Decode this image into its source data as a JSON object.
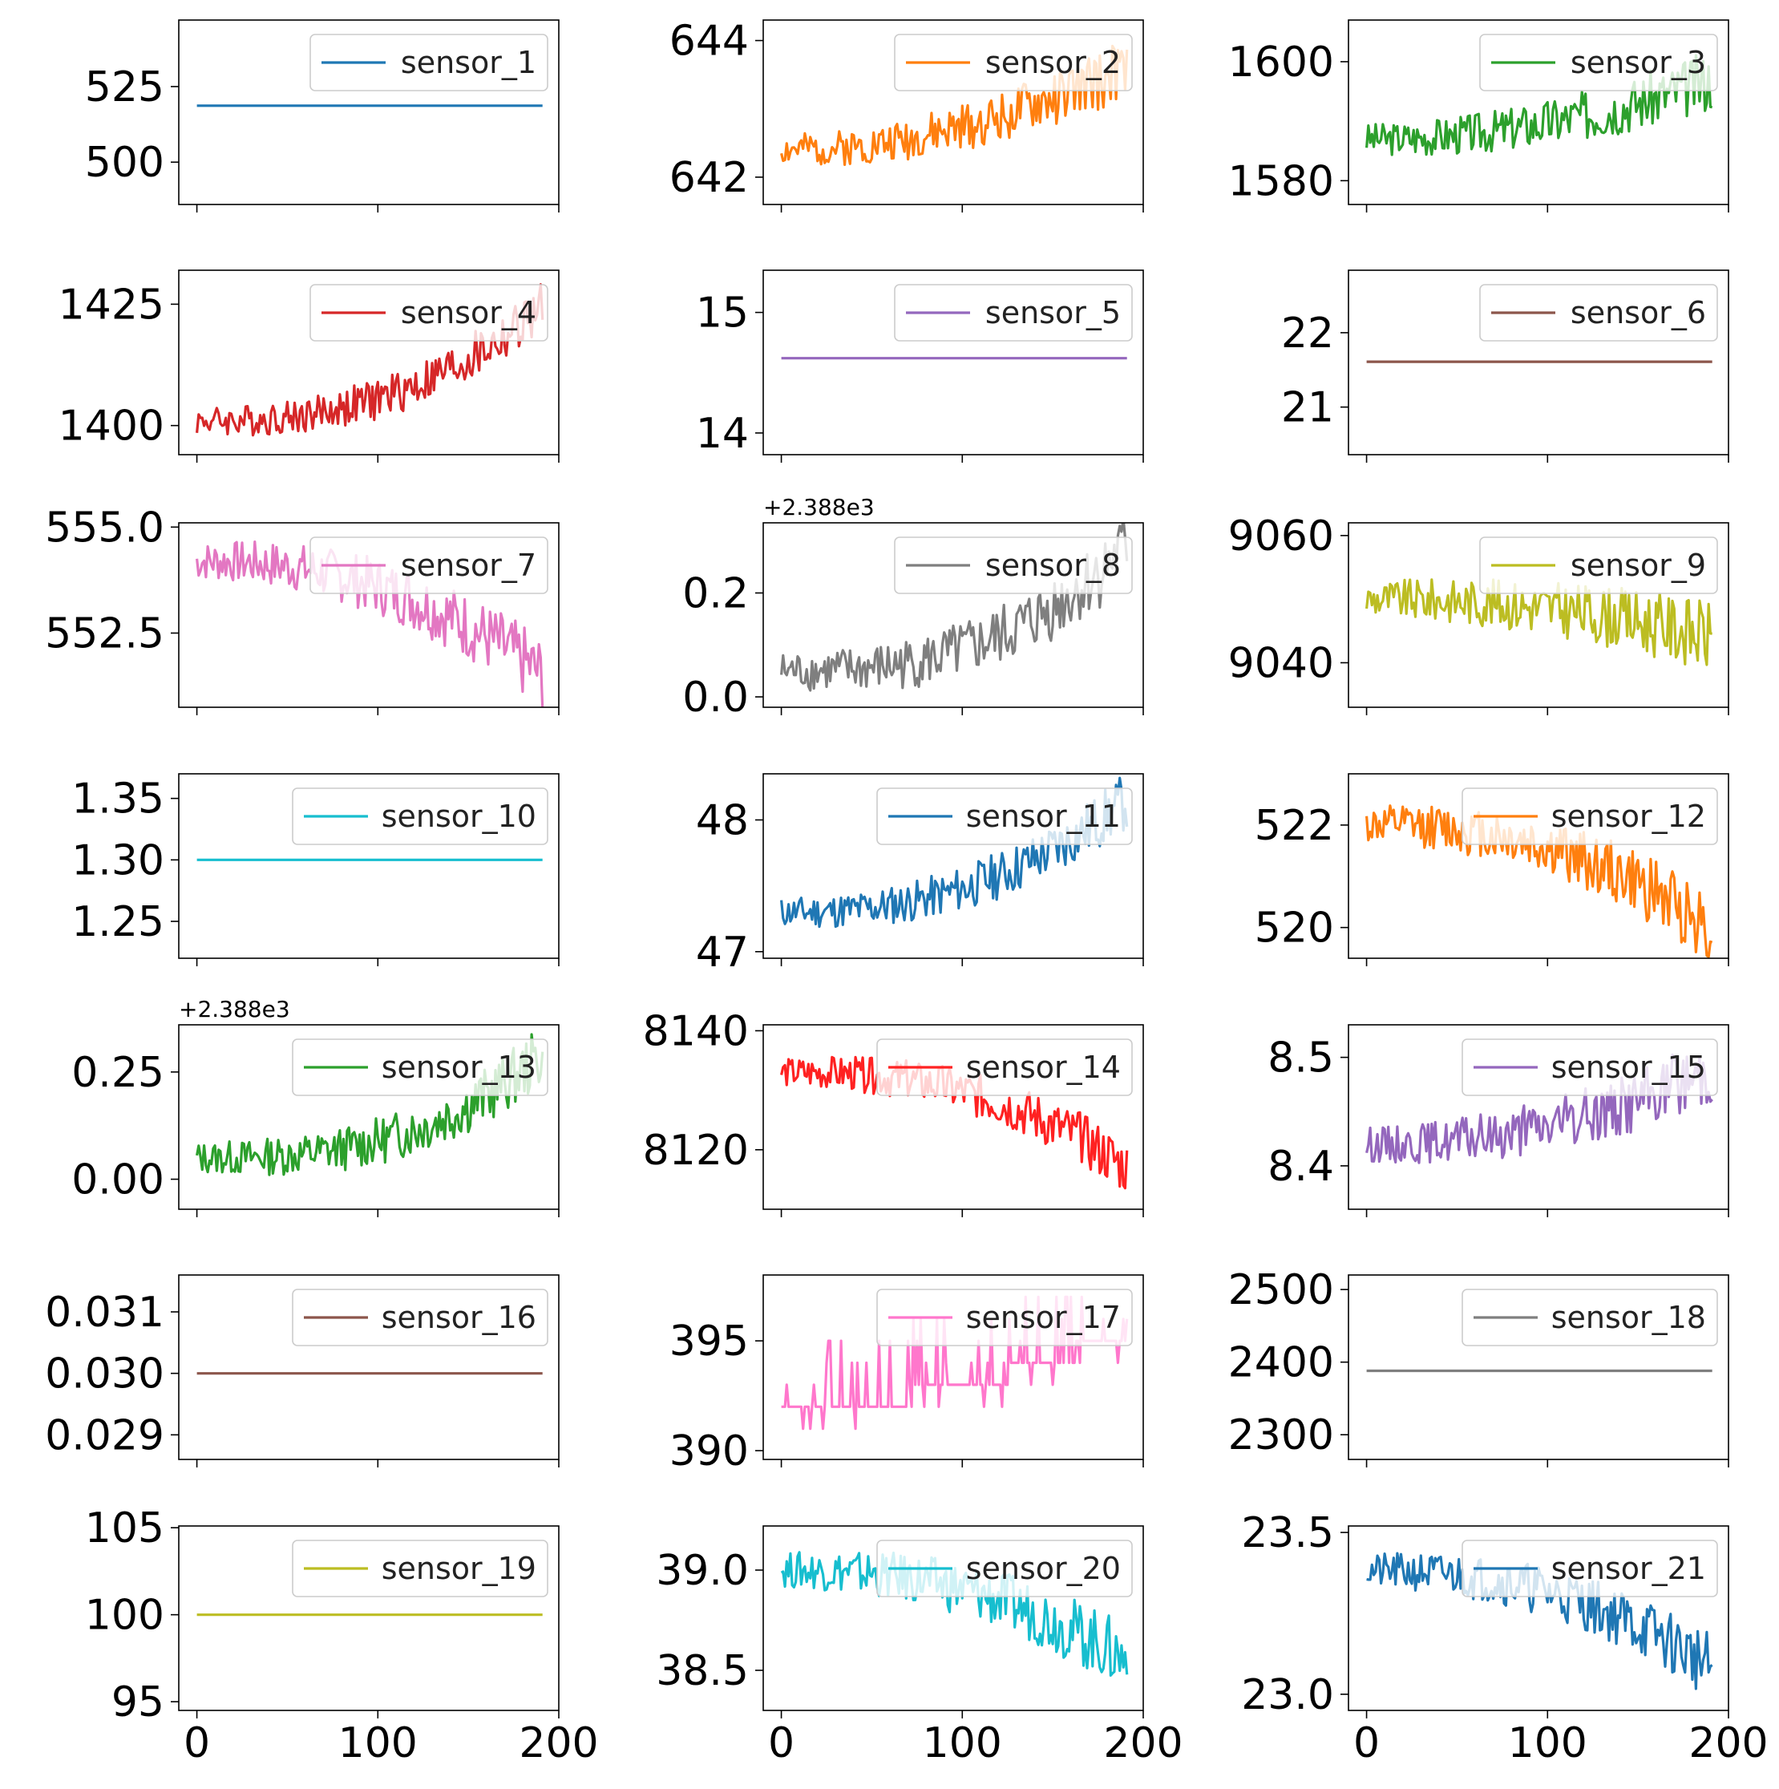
{
  "figure": {
    "title": ""
  },
  "chart_data": [
    {
      "type": "line",
      "name": "sensor_1",
      "legend": "sensor_1",
      "color": "#1f77b4",
      "x_range": [
        0,
        191
      ],
      "xlim": [
        -10,
        200
      ],
      "ylim": [
        486,
        547
      ],
      "yticks": [
        500,
        525
      ],
      "ytick_labels": [
        "500",
        "525"
      ],
      "offset_label": "",
      "mode": "flat",
      "y_value": 518.67
    },
    {
      "type": "line",
      "name": "sensor_2",
      "legend": "sensor_2",
      "color": "#ff7f0e",
      "x_range": [
        0,
        191
      ],
      "xlim": [
        -10,
        200
      ],
      "ylim": [
        641.6,
        644.3
      ],
      "yticks": [
        642,
        644
      ],
      "ytick_labels": [
        "642",
        "644"
      ],
      "offset_label": "",
      "mode": "noisy",
      "start": 642.4,
      "end": 643.6,
      "noise": 0.55,
      "curve": 2.0,
      "seed": 2
    },
    {
      "type": "line",
      "name": "sensor_3",
      "legend": "sensor_3",
      "color": "#2ca02c",
      "x_range": [
        0,
        191
      ],
      "xlim": [
        -10,
        200
      ],
      "ylim": [
        1576,
        1607
      ],
      "yticks": [
        1580,
        1600
      ],
      "ytick_labels": [
        "1580",
        "1600"
      ],
      "offset_label": "",
      "mode": "noisy",
      "start": 1587,
      "end": 1597,
      "noise": 6.5,
      "curve": 2.0,
      "seed": 3
    },
    {
      "type": "line",
      "name": "sensor_4",
      "legend": "sensor_4",
      "color": "#d62728",
      "x_range": [
        0,
        191
      ],
      "xlim": [
        -10,
        200
      ],
      "ylim": [
        1394,
        1432
      ],
      "yticks": [
        1400,
        1425
      ],
      "ytick_labels": [
        "1400",
        "1425"
      ],
      "offset_label": "",
      "mode": "noisy",
      "start": 1401,
      "end": 1424,
      "noise": 7,
      "curve": 2.5,
      "seed": 4
    },
    {
      "type": "line",
      "name": "sensor_5",
      "legend": "sensor_5",
      "color": "#9467bd",
      "x_range": [
        0,
        191
      ],
      "xlim": [
        -10,
        200
      ],
      "ylim": [
        13.82,
        15.35
      ],
      "yticks": [
        14,
        15
      ],
      "ytick_labels": [
        "14",
        "15"
      ],
      "offset_label": "",
      "mode": "flat",
      "y_value": 14.62
    },
    {
      "type": "line",
      "name": "sensor_6",
      "legend": "sensor_6",
      "color": "#8c564b",
      "x_range": [
        0,
        191
      ],
      "xlim": [
        -10,
        200
      ],
      "ylim": [
        20.36,
        22.84
      ],
      "yticks": [
        21,
        22
      ],
      "ytick_labels": [
        "21",
        "22"
      ],
      "offset_label": "",
      "mode": "flat",
      "y_value": 21.61
    },
    {
      "type": "line",
      "name": "sensor_7",
      "legend": "sensor_7",
      "color": "#e377c2",
      "x_range": [
        0,
        191
      ],
      "xlim": [
        -10,
        200
      ],
      "ylim": [
        550.75,
        555.1
      ],
      "yticks": [
        552.5,
        555.0
      ],
      "ytick_labels": [
        "552.5",
        "555.0"
      ],
      "offset_label": "",
      "mode": "noisy",
      "start": 554.2,
      "end": 551.5,
      "noise": 1.1,
      "curve": 2.3,
      "seed": 7
    },
    {
      "type": "line",
      "name": "sensor_8",
      "legend": "sensor_8",
      "color": "#7f7f7f",
      "x_range": [
        0,
        191
      ],
      "xlim": [
        -10,
        200
      ],
      "ylim": [
        -0.02,
        0.335
      ],
      "yticks": [
        0.0,
        0.2
      ],
      "ytick_labels": [
        "0.0",
        "0.2"
      ],
      "offset_label": "+2.388e3",
      "mode": "noisy",
      "start": 0.05,
      "end": 0.29,
      "noise": 0.09,
      "curve": 2.8,
      "seed": 8
    },
    {
      "type": "line",
      "name": "sensor_9",
      "legend": "sensor_9",
      "color": "#bcbd22",
      "x_range": [
        0,
        191
      ],
      "xlim": [
        -10,
        200
      ],
      "ylim": [
        9033,
        9062
      ],
      "yticks": [
        9040,
        9060
      ],
      "ytick_labels": [
        "9040",
        "9060"
      ],
      "offset_label": "",
      "mode": "noisy",
      "start": 9050,
      "end": 9044,
      "noise": 7,
      "curve": 2.2,
      "seed": 9
    },
    {
      "type": "line",
      "name": "sensor_10",
      "legend": "sensor_10",
      "color": "#17becf",
      "x_range": [
        0,
        191
      ],
      "xlim": [
        -10,
        200
      ],
      "ylim": [
        1.22,
        1.37
      ],
      "yticks": [
        1.25,
        1.3,
        1.35
      ],
      "ytick_labels": [
        "1.25",
        "1.30",
        "1.35"
      ],
      "offset_label": "",
      "mode": "flat",
      "y_value": 1.3
    },
    {
      "type": "line",
      "name": "sensor_11",
      "legend": "sensor_11",
      "color": "#1f77b4",
      "x_range": [
        0,
        191
      ],
      "xlim": [
        -10,
        200
      ],
      "ylim": [
        46.95,
        48.35
      ],
      "yticks": [
        47,
        48
      ],
      "ytick_labels": [
        "47",
        "48"
      ],
      "offset_label": "",
      "mode": "noisy",
      "start": 47.3,
      "end": 48.15,
      "noise": 0.28,
      "curve": 2.4,
      "seed": 11
    },
    {
      "type": "line",
      "name": "sensor_12",
      "legend": "sensor_12",
      "color": "#ff7f0e",
      "x_range": [
        0,
        191
      ],
      "xlim": [
        -10,
        200
      ],
      "ylim": [
        519.4,
        523.0
      ],
      "yticks": [
        520,
        522
      ],
      "ytick_labels": [
        "520",
        "522"
      ],
      "offset_label": "",
      "mode": "noisy",
      "start": 522.0,
      "end": 520.0,
      "noise": 0.9,
      "curve": 2.3,
      "seed": 12
    },
    {
      "type": "line",
      "name": "sensor_13",
      "legend": "sensor_13",
      "color": "#2ca02c",
      "x_range": [
        0,
        191
      ],
      "xlim": [
        -10,
        200
      ],
      "ylim": [
        -0.07,
        0.36
      ],
      "yticks": [
        0.0,
        0.25
      ],
      "ytick_labels": [
        "0.00",
        "0.25"
      ],
      "offset_label": "+2.388e3",
      "mode": "noisy",
      "start": 0.05,
      "end": 0.29,
      "noise": 0.09,
      "curve": 2.8,
      "seed": 13
    },
    {
      "type": "line",
      "name": "sensor_14",
      "legend": "sensor_14",
      "color": "#ff2222",
      "x_range": [
        0,
        191
      ],
      "xlim": [
        -10,
        200
      ],
      "ylim": [
        8110,
        8141
      ],
      "yticks": [
        8120,
        8140
      ],
      "ytick_labels": [
        "8120",
        "8140"
      ],
      "offset_label": "",
      "mode": "noisy",
      "start": 8133,
      "end": 8117,
      "noise": 6,
      "curve": 2.5,
      "seed": 14
    },
    {
      "type": "line",
      "name": "sensor_15",
      "legend": "sensor_15",
      "color": "#9467bd",
      "x_range": [
        0,
        191
      ],
      "xlim": [
        -10,
        200
      ],
      "ylim": [
        8.36,
        8.53
      ],
      "yticks": [
        8.4,
        8.5
      ],
      "ytick_labels": [
        "8.4",
        "8.5"
      ],
      "offset_label": "",
      "mode": "noisy",
      "start": 8.42,
      "end": 8.49,
      "noise": 0.04,
      "curve": 2.2,
      "seed": 15
    },
    {
      "type": "line",
      "name": "sensor_16",
      "legend": "sensor_16",
      "color": "#8c564b",
      "x_range": [
        0,
        191
      ],
      "xlim": [
        -10,
        200
      ],
      "ylim": [
        0.0286,
        0.0316
      ],
      "yticks": [
        0.029,
        0.03,
        0.031
      ],
      "ytick_labels": [
        "0.029",
        "0.030",
        "0.031"
      ],
      "offset_label": "",
      "mode": "flat",
      "y_value": 0.03
    },
    {
      "type": "line",
      "name": "sensor_17",
      "legend": "sensor_17",
      "color": "#ff77cc",
      "x_range": [
        0,
        191
      ],
      "xlim": [
        -10,
        200
      ],
      "ylim": [
        389.6,
        398.0
      ],
      "yticks": [
        390,
        395
      ],
      "ytick_labels": [
        "390",
        "395"
      ],
      "offset_label": "",
      "mode": "stepped",
      "start": 392,
      "end": 395.5,
      "noise": 2.2,
      "curve": 2.0,
      "seed": 17
    },
    {
      "type": "line",
      "name": "sensor_18",
      "legend": "sensor_18",
      "color": "#7f7f7f",
      "x_range": [
        0,
        191
      ],
      "xlim": [
        -10,
        200
      ],
      "ylim": [
        2266,
        2520
      ],
      "yticks": [
        2300,
        2400,
        2500
      ],
      "ytick_labels": [
        "2300",
        "2400",
        "2500"
      ],
      "offset_label": "",
      "mode": "flat",
      "y_value": 2388
    },
    {
      "type": "line",
      "name": "sensor_19",
      "legend": "sensor_19",
      "color": "#bcbd22",
      "x_range": [
        0,
        191
      ],
      "xlim": [
        -10,
        200
      ],
      "ylim": [
        94.5,
        105.1
      ],
      "yticks": [
        95,
        100,
        105
      ],
      "ytick_labels": [
        "95",
        "100",
        "105"
      ],
      "offset_label": "",
      "mode": "flat",
      "y_value": 100
    },
    {
      "type": "line",
      "name": "sensor_20",
      "legend": "sensor_20",
      "color": "#17becf",
      "x_range": [
        0,
        191
      ],
      "xlim": [
        -10,
        200
      ],
      "ylim": [
        38.3,
        39.22
      ],
      "yticks": [
        38.5,
        39.0
      ],
      "ytick_labels": [
        "38.5",
        "39.0"
      ],
      "offset_label": "",
      "mode": "noisy",
      "start": 39.0,
      "end": 38.55,
      "noise": 0.22,
      "curve": 2.4,
      "seed": 20
    },
    {
      "type": "line",
      "name": "sensor_21",
      "legend": "sensor_21",
      "color": "#1f77b4",
      "x_range": [
        0,
        191
      ],
      "xlim": [
        -10,
        200
      ],
      "ylim": [
        22.95,
        23.52
      ],
      "yticks": [
        23.0,
        23.5
      ],
      "ytick_labels": [
        "23.0",
        "23.5"
      ],
      "offset_label": "",
      "mode": "noisy",
      "start": 23.38,
      "end": 23.08,
      "noise": 0.13,
      "curve": 2.4,
      "seed": 21
    }
  ],
  "shared_x": {
    "xticks": [
      0,
      100,
      200
    ],
    "xtick_labels": [
      "0",
      "100",
      "200"
    ]
  }
}
